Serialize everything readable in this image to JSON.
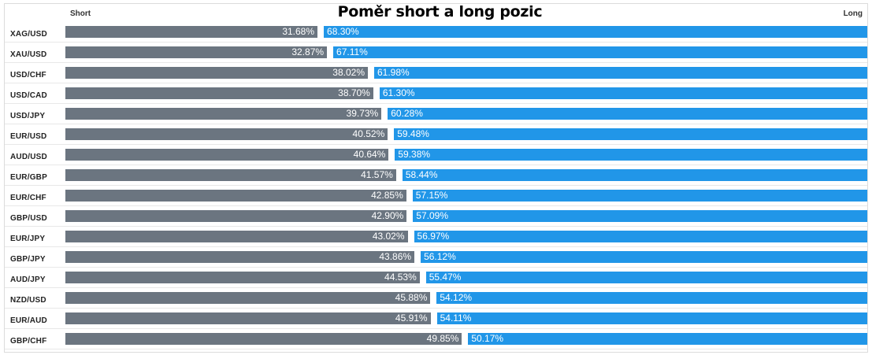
{
  "chart_data": {
    "type": "bar",
    "title": "Poměr short a long pozic",
    "left_label": "Short",
    "right_label": "Long",
    "categories": [
      "XAG/USD",
      "XAU/USD",
      "USD/CHF",
      "USD/CAD",
      "USD/JPY",
      "EUR/USD",
      "AUD/USD",
      "EUR/GBP",
      "EUR/CHF",
      "GBP/USD",
      "EUR/JPY",
      "GBP/JPY",
      "AUD/JPY",
      "NZD/USD",
      "EUR/AUD",
      "GBP/CHF"
    ],
    "series": [
      {
        "name": "Short",
        "values": [
          31.68,
          32.87,
          38.02,
          38.7,
          39.73,
          40.52,
          40.64,
          41.57,
          42.85,
          42.9,
          43.02,
          43.86,
          44.53,
          45.88,
          45.91,
          49.85
        ],
        "labels": [
          "31.68%",
          "32.87%",
          "38.02%",
          "38.70%",
          "39.73%",
          "40.52%",
          "40.64%",
          "41.57%",
          "42.85%",
          "42.90%",
          "43.02%",
          "43.86%",
          "44.53%",
          "45.88%",
          "45.91%",
          "49.85%"
        ]
      },
      {
        "name": "Long",
        "values": [
          68.3,
          67.11,
          61.98,
          61.3,
          60.28,
          59.48,
          59.38,
          58.44,
          57.15,
          57.09,
          56.97,
          56.12,
          55.47,
          54.12,
          54.11,
          50.17
        ],
        "labels": [
          "68.30%",
          "67.11%",
          "61.98%",
          "61.30%",
          "60.28%",
          "59.48%",
          "59.38%",
          "58.44%",
          "57.15%",
          "57.09%",
          "56.97%",
          "56.12%",
          "55.47%",
          "54.12%",
          "54.11%",
          "50.17%"
        ]
      }
    ],
    "colors": {
      "short": "#6b7580",
      "long": "#2196e8"
    },
    "orientation": "horizontal-stacked-100"
  }
}
